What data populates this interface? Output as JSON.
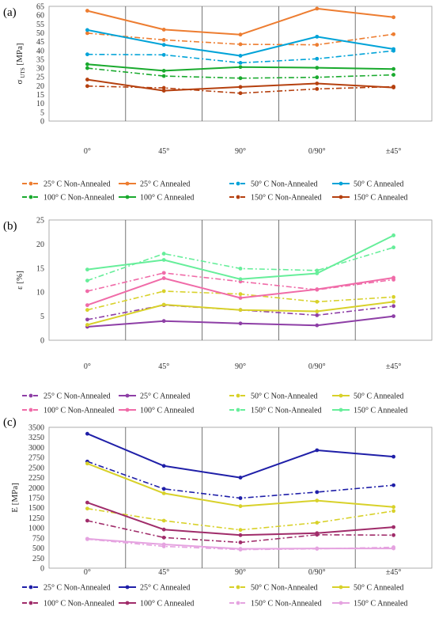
{
  "chart_data": [
    {
      "type": "line",
      "panel_label": "(a)",
      "title": "",
      "xlabel": "",
      "ylabel": "σ UTS [MPa]",
      "ylabel_main": "σ",
      "ylabel_sub": "UTS",
      "ylabel_unit": " [MPa]",
      "categories": [
        "0°",
        "45°",
        "90°",
        "0/90°",
        "±45°"
      ],
      "ylim": [
        0,
        65
      ],
      "yticks": [
        0,
        5,
        10,
        15,
        20,
        25,
        30,
        35,
        40,
        45,
        50,
        55,
        60,
        65
      ],
      "grid": "vertical",
      "legend_position": "bottom",
      "series": [
        {
          "name": "25° C Non-Annealed",
          "color": "#ED7D31",
          "dashed": true,
          "values": [
            49.8,
            46.0,
            43.5,
            43.2,
            49.2
          ]
        },
        {
          "name": "25° C Annealed",
          "color": "#ED7D31",
          "dashed": false,
          "values": [
            62.5,
            51.8,
            49.0,
            63.7,
            58.8
          ]
        },
        {
          "name": "50° C Non-Annealed",
          "color": "#00A3D8",
          "dashed": true,
          "values": [
            37.8,
            37.5,
            33.0,
            35.3,
            39.8
          ]
        },
        {
          "name": "50° C Annealed",
          "color": "#00A3D8",
          "dashed": false,
          "values": [
            51.6,
            43.2,
            37.0,
            47.8,
            40.8
          ]
        },
        {
          "name": "100° C Non-Annealed",
          "color": "#1AAA2E",
          "dashed": true,
          "values": [
            30.0,
            25.5,
            24.3,
            24.8,
            26.2
          ]
        },
        {
          "name": "100° C Annealed",
          "color": "#1AAA2E",
          "dashed": false,
          "values": [
            32.2,
            28.5,
            30.6,
            30.2,
            29.5
          ]
        },
        {
          "name": "150° C Non-Annealed",
          "color": "#B5400F",
          "dashed": true,
          "values": [
            19.8,
            18.8,
            15.8,
            18.2,
            19.5
          ]
        },
        {
          "name": "150° C Annealed",
          "color": "#B5400F",
          "dashed": false,
          "values": [
            23.5,
            17.2,
            19.3,
            21.3,
            19.0
          ]
        }
      ]
    },
    {
      "type": "line",
      "panel_label": "(b)",
      "title": "",
      "xlabel": "",
      "ylabel": "ε [%]",
      "ylabel_main": "ε [%]",
      "ylabel_sub": "",
      "ylabel_unit": "",
      "categories": [
        "0°",
        "45°",
        "90°",
        "0/90°",
        "±45°"
      ],
      "ylim": [
        0,
        25
      ],
      "yticks": [
        0,
        5,
        10,
        15,
        20,
        25
      ],
      "grid": "vertical",
      "legend_position": "bottom",
      "series": [
        {
          "name": "25° C Non-Annealed",
          "color": "#8E3FA6",
          "dashed": true,
          "values": [
            4.3,
            7.3,
            6.3,
            5.2,
            7.1
          ]
        },
        {
          "name": "25° C Annealed",
          "color": "#8E3FA6",
          "dashed": false,
          "values": [
            2.8,
            4.0,
            3.5,
            3.1,
            5.0
          ]
        },
        {
          "name": "50° C Non-Annealed",
          "color": "#D8D12A",
          "dashed": true,
          "values": [
            6.3,
            10.2,
            9.6,
            8.0,
            9.0
          ]
        },
        {
          "name": "50° C Annealed",
          "color": "#D8D12A",
          "dashed": false,
          "values": [
            3.2,
            7.4,
            6.3,
            6.0,
            8.0
          ]
        },
        {
          "name": "100° C Non-Annealed",
          "color": "#F06BA8",
          "dashed": true,
          "values": [
            10.2,
            14.0,
            12.2,
            10.5,
            12.6
          ]
        },
        {
          "name": "100° C Annealed",
          "color": "#F06BA8",
          "dashed": false,
          "values": [
            7.3,
            12.9,
            8.8,
            10.6,
            13.0
          ]
        },
        {
          "name": "150° C Non-Annealed",
          "color": "#66EE9A",
          "dashed": true,
          "values": [
            12.4,
            18.0,
            14.9,
            14.5,
            19.3
          ]
        },
        {
          "name": "150° C Annealed",
          "color": "#66EE9A",
          "dashed": false,
          "values": [
            14.7,
            16.7,
            12.7,
            13.9,
            21.8
          ]
        }
      ]
    },
    {
      "type": "line",
      "panel_label": "(c)",
      "title": "",
      "xlabel": "",
      "ylabel": "E [MPa]",
      "ylabel_main": "E [MPa]",
      "ylabel_sub": "",
      "ylabel_unit": "",
      "categories": [
        "0°",
        "45°",
        "90°",
        "0/90°",
        "±45°"
      ],
      "ylim": [
        0,
        3500
      ],
      "yticks": [
        0,
        250,
        500,
        750,
        1000,
        1250,
        1500,
        1750,
        2000,
        2250,
        2500,
        2750,
        3000,
        3250,
        3500
      ],
      "grid": "vertical",
      "legend_position": "bottom",
      "series": [
        {
          "name": "25° C Non-Annealed",
          "color": "#1F1FA8",
          "dashed": true,
          "values": [
            2650,
            1970,
            1740,
            1890,
            2060
          ]
        },
        {
          "name": "25° C Annealed",
          "color": "#1F1FA8",
          "dashed": false,
          "values": [
            3340,
            2540,
            2250,
            2930,
            2770
          ]
        },
        {
          "name": "50° C Non-Annealed",
          "color": "#D8D12A",
          "dashed": true,
          "values": [
            1480,
            1180,
            950,
            1130,
            1420
          ]
        },
        {
          "name": "50° C Annealed",
          "color": "#D8D12A",
          "dashed": false,
          "values": [
            2600,
            1860,
            1540,
            1680,
            1520
          ]
        },
        {
          "name": "100° C Non-Annealed",
          "color": "#A02C6A",
          "dashed": true,
          "values": [
            1180,
            760,
            640,
            830,
            820
          ]
        },
        {
          "name": "100° C Annealed",
          "color": "#A02C6A",
          "dashed": false,
          "values": [
            1630,
            960,
            820,
            870,
            1020
          ]
        },
        {
          "name": "150° C Non-Annealed",
          "color": "#E5A3E0",
          "dashed": true,
          "values": [
            720,
            540,
            460,
            480,
            520
          ]
        },
        {
          "name": "150° C Annealed",
          "color": "#E5A3E0",
          "dashed": false,
          "values": [
            730,
            590,
            480,
            490,
            490
          ]
        }
      ]
    }
  ]
}
